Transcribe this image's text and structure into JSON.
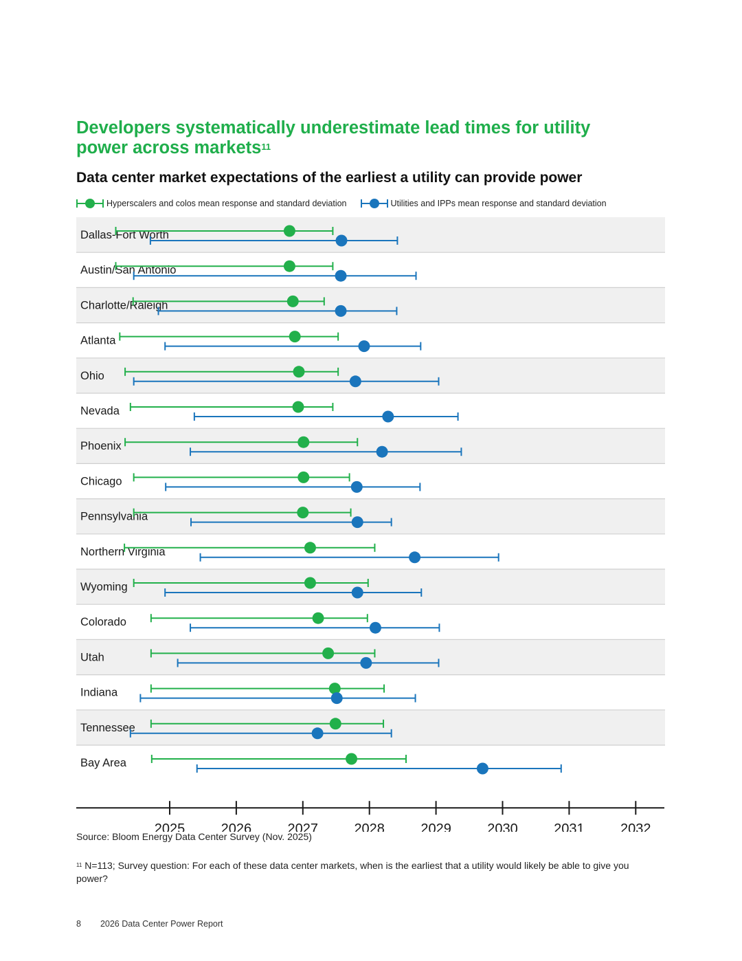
{
  "headline": {
    "text": "Developers systematically underestimate lead times for utility power across markets",
    "footnote_ref": "11"
  },
  "chart_data": {
    "type": "errorbar",
    "title": "Data center market expectations of the earliest a utility can provide power",
    "legend_position": "top-left",
    "grid": false,
    "xlim": [
      2023.6,
      2032.43
    ],
    "x_ticks": [
      2025,
      2026,
      2027,
      2028,
      2029,
      2030,
      2031,
      2032
    ],
    "categories": [
      "Dallas-Fort Worth",
      "Austin/San Antonio",
      "Charlotte/Raleigh",
      "Atlanta",
      "Ohio",
      "Nevada",
      "Phoenix",
      "Chicago",
      "Pennsylvania",
      "Northern Virginia",
      "Wyoming",
      "Colorado",
      "Utah",
      "Indiana",
      "Tennessee",
      "Bay Area"
    ],
    "series": [
      {
        "name": "Hyperscalers and colos mean response and standard deviation",
        "color": "#22b04b",
        "mean": [
          2026.8,
          2026.8,
          2026.85,
          2026.88,
          2026.94,
          2026.93,
          2027.01,
          2027.01,
          2027.0,
          2027.11,
          2027.11,
          2027.23,
          2027.38,
          2027.48,
          2027.49,
          2027.73
        ],
        "low": [
          2024.19,
          2024.19,
          2024.45,
          2024.25,
          2024.33,
          2024.41,
          2024.33,
          2024.46,
          2024.46,
          2024.32,
          2024.46,
          2024.72,
          2024.72,
          2024.72,
          2024.72,
          2024.73
        ],
        "high": [
          2027.45,
          2027.45,
          2027.32,
          2027.53,
          2027.53,
          2027.45,
          2027.82,
          2027.7,
          2027.72,
          2028.08,
          2027.98,
          2027.97,
          2028.08,
          2028.22,
          2028.21,
          2028.55
        ]
      },
      {
        "name": "Utilities and IPPs mean response and standard deviation",
        "color": "#1a75bc",
        "mean": [
          2027.58,
          2027.57,
          2027.57,
          2027.92,
          2027.79,
          2028.28,
          2028.19,
          2027.81,
          2027.82,
          2028.68,
          2027.82,
          2028.09,
          2027.95,
          2027.51,
          2027.22,
          2029.7
        ],
        "low": [
          2024.71,
          2024.46,
          2024.83,
          2024.93,
          2024.46,
          2025.37,
          2025.31,
          2024.94,
          2025.32,
          2025.46,
          2024.93,
          2025.31,
          2025.12,
          2024.56,
          2024.41,
          2025.41
        ],
        "high": [
          2028.42,
          2028.7,
          2028.41,
          2028.77,
          2029.04,
          2029.33,
          2029.38,
          2028.76,
          2028.33,
          2029.94,
          2028.78,
          2029.05,
          2029.04,
          2028.69,
          2028.33,
          2030.88
        ]
      }
    ]
  },
  "source": "Source: Bloom Energy Data Center Survey (Nov. 2025)",
  "footnote": {
    "ref": "11",
    "text": "N=113; Survey question: For each of these data center markets, when is the earliest that a utility would likely be able to give you power?"
  },
  "footer": {
    "page_number": "8",
    "report_title": "2026 Data Center Power Report"
  }
}
